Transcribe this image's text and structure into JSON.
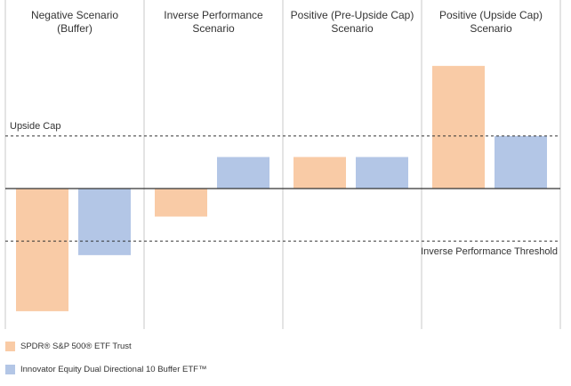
{
  "chart_data": {
    "type": "bar",
    "categories": [
      "Negative Scenario\n(Buffer)",
      "Inverse Performance\nScenario",
      "Positive (Pre-Upside Cap)\nScenario",
      "Positive (Upside Cap)\nScenario"
    ],
    "series": [
      {
        "name": "SPDR® S&P 500® ETF Trust",
        "color": "#f9cba6",
        "values": [
          -3.5,
          -0.8,
          0.9,
          3.5
        ]
      },
      {
        "name": "Innovator Equity Dual Directional 10 Buffer ETF™",
        "color": "#b3c6e6",
        "values": [
          -1.9,
          0.9,
          0.9,
          1.5
        ]
      }
    ],
    "reference_lines": [
      {
        "label": "Upside Cap",
        "value": 1.5,
        "style": "dashed"
      },
      {
        "label": "Inverse Performance Threshold",
        "value": -1.5,
        "style": "dashed"
      }
    ],
    "ylim": [
      -4.1,
      5.3
    ],
    "grid": "vertical separators only",
    "legend_position": "bottom-left"
  }
}
